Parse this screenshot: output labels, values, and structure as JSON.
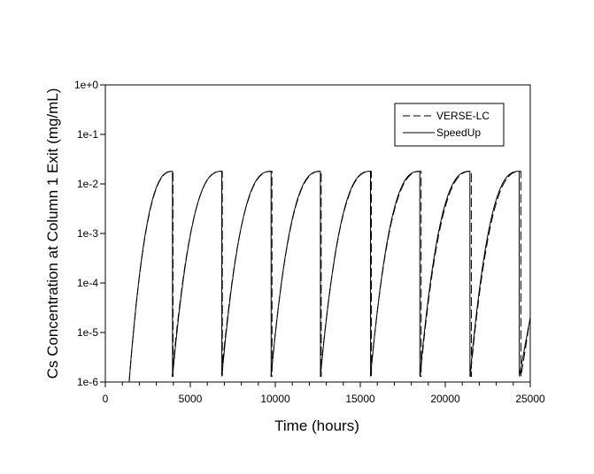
{
  "chart_data": {
    "type": "line",
    "title": "",
    "xlabel": "Time (hours)",
    "ylabel": "Cs Concentration at Column 1 Exit (mg/mL)",
    "xlim": [
      0,
      25000
    ],
    "ylim": [
      1e-06,
      1
    ],
    "yscale": "log",
    "grid": false,
    "legend_position": "upper right (inside)",
    "x_ticks": [
      0,
      5000,
      10000,
      15000,
      20000,
      25000
    ],
    "x_tick_labels": [
      "0",
      "5000",
      "10000",
      "15000",
      "20000",
      "25000"
    ],
    "x_minor_ticks_per_major": 5,
    "y_ticks": [
      1,
      0.1,
      0.01,
      0.001,
      0.0001,
      1e-05,
      1e-06
    ],
    "y_tick_labels": [
      "1e+0",
      "1e-1",
      "1e-2",
      "1e-3",
      "1e-4",
      "1e-5",
      "1e-6"
    ],
    "legend": [
      {
        "label": "VERSE-LC",
        "style": "dashed"
      },
      {
        "label": "SpeedUp",
        "style": "solid"
      }
    ],
    "series": [
      {
        "name": "SpeedUp",
        "style": "solid",
        "first_rise_start": 1400,
        "breakthrough_times": [
          3950,
          6850,
          9750,
          12650,
          15600,
          18500,
          21450,
          24350
        ],
        "plateau_value": 0.018,
        "trough_value": 1.3e-06,
        "points": [
          [
            1400,
            1e-06
          ],
          [
            1800,
            3e-05
          ],
          [
            2200,
            0.0004
          ],
          [
            2600,
            0.0025
          ],
          [
            3000,
            0.008
          ],
          [
            3400,
            0.015
          ],
          [
            3950,
            0.018
          ],
          [
            3960,
            1.3e-06
          ],
          [
            4500,
            5e-05
          ],
          [
            5200,
            0.001
          ],
          [
            5900,
            0.007
          ],
          [
            6400,
            0.016
          ],
          [
            6850,
            0.018
          ],
          [
            6860,
            1.3e-06
          ],
          [
            7400,
            5e-05
          ],
          [
            8100,
            0.001
          ],
          [
            8800,
            0.007
          ],
          [
            9300,
            0.016
          ],
          [
            9750,
            0.018
          ],
          [
            9760,
            1.3e-06
          ],
          [
            10300,
            4e-05
          ],
          [
            11000,
            0.0009
          ],
          [
            11700,
            0.007
          ],
          [
            12200,
            0.016
          ],
          [
            12650,
            0.018
          ],
          [
            12660,
            1.3e-06
          ],
          [
            13250,
            4e-05
          ],
          [
            13950,
            0.0009
          ],
          [
            14650,
            0.007
          ],
          [
            15150,
            0.016
          ],
          [
            15600,
            0.018
          ],
          [
            15610,
            1.3e-06
          ],
          [
            16150,
            4e-05
          ],
          [
            16850,
            0.0009
          ],
          [
            17550,
            0.007
          ],
          [
            18050,
            0.016
          ],
          [
            18500,
            0.018
          ],
          [
            18510,
            1.3e-06
          ],
          [
            19100,
            4e-05
          ],
          [
            19800,
            0.0009
          ],
          [
            20500,
            0.007
          ],
          [
            21000,
            0.016
          ],
          [
            21450,
            0.018
          ],
          [
            21460,
            1.3e-06
          ],
          [
            22000,
            4e-05
          ],
          [
            22700,
            0.0009
          ],
          [
            23400,
            0.007
          ],
          [
            23900,
            0.016
          ],
          [
            24350,
            0.018
          ],
          [
            24360,
            1.3e-06
          ],
          [
            25000,
            2e-05
          ]
        ]
      },
      {
        "name": "VERSE-LC",
        "style": "dashed",
        "first_rise_start": 1400,
        "breakthrough_times": [
          3980,
          6880,
          9800,
          12700,
          15650,
          18580,
          21530,
          24450
        ],
        "plateau_value": 0.018,
        "trough_value": 1.3e-06,
        "notes": "Nearly coincides with SpeedUp; later cycles rise slightly earlier and drop slightly later than SpeedUp."
      }
    ]
  },
  "axes": {
    "x_title": "Time (hours)",
    "y_title": "Cs Concentration at Column 1 Exit (mg/mL)"
  },
  "legend": {
    "items": [
      {
        "label": "VERSE-LC"
      },
      {
        "label": "SpeedUp"
      }
    ]
  }
}
